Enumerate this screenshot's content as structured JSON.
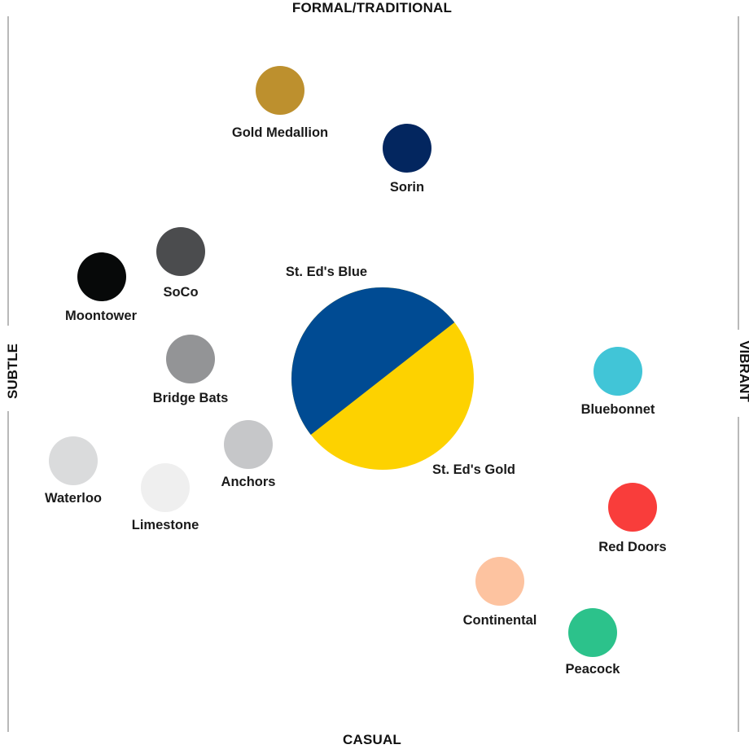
{
  "axes": {
    "top": "FORMAL/TRADITIONAL",
    "bottom": "CASUAL",
    "left": "SUBTLE",
    "right": "VIBRANT"
  },
  "center": {
    "blue_label": "St. Ed's Blue",
    "gold_label": "St. Ed's Gold",
    "blue_color": "#004b93",
    "gold_color": "#fdd200"
  },
  "swatches": [
    {
      "name": "Gold Medallion",
      "color": "#bd902e"
    },
    {
      "name": "Sorin",
      "color": "#03265f"
    },
    {
      "name": "SoCo",
      "color": "#4b4c4e"
    },
    {
      "name": "Moontower",
      "color": "#070909"
    },
    {
      "name": "Bridge Bats",
      "color": "#939496"
    },
    {
      "name": "Anchors",
      "color": "#c6c7c9"
    },
    {
      "name": "Waterloo",
      "color": "#dadbdc"
    },
    {
      "name": "Limestone",
      "color": "#efefef"
    },
    {
      "name": "Bluebonnet",
      "color": "#41c5d7"
    },
    {
      "name": "Red Doors",
      "color": "#f93d3b"
    },
    {
      "name": "Continental",
      "color": "#fdc3a0"
    },
    {
      "name": "Peacock",
      "color": "#2cc28b"
    }
  ]
}
